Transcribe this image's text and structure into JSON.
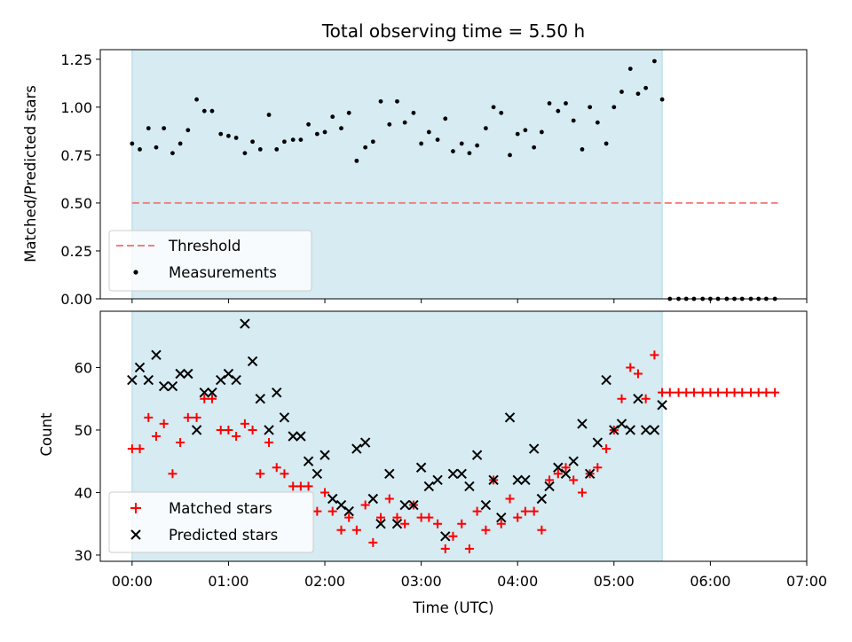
{
  "chart_data": [
    {
      "type": "scatter",
      "title": "Total observing time = 5.50 h",
      "ylabel": "Matched/Predicted stars",
      "xlabel": "",
      "xlim_hours": [
        -0.33,
        7.0
      ],
      "ylim": [
        0,
        1.3
      ],
      "yticks": [
        "0.00",
        "0.25",
        "0.50",
        "0.75",
        "1.00",
        "1.25"
      ],
      "yticks_values": [
        0,
        0.25,
        0.5,
        0.75,
        1.0,
        1.25
      ],
      "shaded_span_hours": [
        0,
        5.5
      ],
      "shade_color": "#add8e6",
      "legend_position": "lower-left",
      "series": [
        {
          "name": "Threshold",
          "style": "dashed-line",
          "color": "#f08080",
          "points": [
            [
              0,
              0.5
            ],
            [
              6.7,
              0.5
            ]
          ]
        },
        {
          "name": "Measurements",
          "style": "dot",
          "color": "#000000",
          "points": [
            [
              0.0,
              0.81
            ],
            [
              0.08,
              0.78
            ],
            [
              0.17,
              0.89
            ],
            [
              0.25,
              0.79
            ],
            [
              0.33,
              0.89
            ],
            [
              0.42,
              0.76
            ],
            [
              0.5,
              0.81
            ],
            [
              0.58,
              0.88
            ],
            [
              0.67,
              1.04
            ],
            [
              0.75,
              0.98
            ],
            [
              0.83,
              0.98
            ],
            [
              0.92,
              0.86
            ],
            [
              1.0,
              0.85
            ],
            [
              1.08,
              0.84
            ],
            [
              1.17,
              0.76
            ],
            [
              1.25,
              0.82
            ],
            [
              1.33,
              0.78
            ],
            [
              1.42,
              0.96
            ],
            [
              1.5,
              0.78
            ],
            [
              1.58,
              0.82
            ],
            [
              1.67,
              0.83
            ],
            [
              1.75,
              0.83
            ],
            [
              1.83,
              0.91
            ],
            [
              1.92,
              0.86
            ],
            [
              2.0,
              0.87
            ],
            [
              2.08,
              0.95
            ],
            [
              2.17,
              0.89
            ],
            [
              2.25,
              0.97
            ],
            [
              2.33,
              0.72
            ],
            [
              2.42,
              0.79
            ],
            [
              2.5,
              0.82
            ],
            [
              2.58,
              1.03
            ],
            [
              2.67,
              0.91
            ],
            [
              2.75,
              1.03
            ],
            [
              2.83,
              0.92
            ],
            [
              2.92,
              0.97
            ],
            [
              3.0,
              0.81
            ],
            [
              3.08,
              0.87
            ],
            [
              3.17,
              0.83
            ],
            [
              3.25,
              0.94
            ],
            [
              3.33,
              0.77
            ],
            [
              3.42,
              0.81
            ],
            [
              3.5,
              0.76
            ],
            [
              3.58,
              0.8
            ],
            [
              3.67,
              0.89
            ],
            [
              3.75,
              1.0
            ],
            [
              3.83,
              0.97
            ],
            [
              3.92,
              0.75
            ],
            [
              4.0,
              0.86
            ],
            [
              4.08,
              0.88
            ],
            [
              4.17,
              0.79
            ],
            [
              4.25,
              0.87
            ],
            [
              4.33,
              1.02
            ],
            [
              4.42,
              0.98
            ],
            [
              4.5,
              1.02
            ],
            [
              4.58,
              0.93
            ],
            [
              4.67,
              0.78
            ],
            [
              4.75,
              1.0
            ],
            [
              4.83,
              0.92
            ],
            [
              4.92,
              0.81
            ],
            [
              5.0,
              1.0
            ],
            [
              5.08,
              1.08
            ],
            [
              5.17,
              1.2
            ],
            [
              5.25,
              1.07
            ],
            [
              5.33,
              1.1
            ],
            [
              5.42,
              1.24
            ],
            [
              5.5,
              1.04
            ],
            [
              5.58,
              0
            ],
            [
              5.67,
              0
            ],
            [
              5.75,
              0
            ],
            [
              5.83,
              0
            ],
            [
              5.92,
              0
            ],
            [
              6.0,
              0
            ],
            [
              6.08,
              0
            ],
            [
              6.17,
              0
            ],
            [
              6.25,
              0
            ],
            [
              6.33,
              0
            ],
            [
              6.42,
              0
            ],
            [
              6.5,
              0
            ],
            [
              6.58,
              0
            ],
            [
              6.67,
              0
            ]
          ]
        }
      ]
    },
    {
      "type": "scatter",
      "title": "",
      "ylabel": "Count",
      "xlabel": "Time (UTC)",
      "xlim_hours": [
        -0.33,
        7.0
      ],
      "ylim": [
        29,
        69
      ],
      "yticks": [
        "30",
        "40",
        "50",
        "60"
      ],
      "yticks_values": [
        30,
        40,
        50,
        60
      ],
      "xticks": [
        "00:00",
        "01:00",
        "02:00",
        "03:00",
        "04:00",
        "05:00",
        "06:00",
        "07:00"
      ],
      "xticks_hours": [
        0,
        1,
        2,
        3,
        4,
        5,
        6,
        7
      ],
      "shaded_span_hours": [
        0,
        5.5
      ],
      "shade_color": "#add8e6",
      "legend_position": "lower-left",
      "series": [
        {
          "name": "Matched stars",
          "style": "plus",
          "color": "#ff0000",
          "points": [
            [
              0.0,
              47
            ],
            [
              0.08,
              47
            ],
            [
              0.17,
              52
            ],
            [
              0.25,
              49
            ],
            [
              0.33,
              51
            ],
            [
              0.42,
              43
            ],
            [
              0.5,
              48
            ],
            [
              0.58,
              52
            ],
            [
              0.67,
              52
            ],
            [
              0.75,
              55
            ],
            [
              0.83,
              55
            ],
            [
              0.92,
              50
            ],
            [
              1.0,
              50
            ],
            [
              1.08,
              49
            ],
            [
              1.17,
              51
            ],
            [
              1.25,
              50
            ],
            [
              1.33,
              43
            ],
            [
              1.42,
              48
            ],
            [
              1.5,
              44
            ],
            [
              1.58,
              43
            ],
            [
              1.67,
              41
            ],
            [
              1.75,
              41
            ],
            [
              1.83,
              41
            ],
            [
              1.92,
              37
            ],
            [
              2.0,
              40
            ],
            [
              2.08,
              37
            ],
            [
              2.17,
              34
            ],
            [
              2.25,
              36
            ],
            [
              2.33,
              34
            ],
            [
              2.42,
              38
            ],
            [
              2.5,
              32
            ],
            [
              2.58,
              36
            ],
            [
              2.67,
              39
            ],
            [
              2.75,
              36
            ],
            [
              2.83,
              35
            ],
            [
              2.92,
              38
            ],
            [
              3.0,
              36
            ],
            [
              3.08,
              36
            ],
            [
              3.17,
              35
            ],
            [
              3.25,
              31
            ],
            [
              3.33,
              33
            ],
            [
              3.42,
              35
            ],
            [
              3.5,
              31
            ],
            [
              3.58,
              37
            ],
            [
              3.67,
              34
            ],
            [
              3.75,
              42
            ],
            [
              3.83,
              35
            ],
            [
              3.92,
              39
            ],
            [
              4.0,
              36
            ],
            [
              4.08,
              37
            ],
            [
              4.17,
              37
            ],
            [
              4.25,
              34
            ],
            [
              4.33,
              42
            ],
            [
              4.42,
              43
            ],
            [
              4.5,
              44
            ],
            [
              4.58,
              42
            ],
            [
              4.67,
              40
            ],
            [
              4.75,
              43
            ],
            [
              4.83,
              44
            ],
            [
              4.92,
              47
            ],
            [
              5.0,
              50
            ],
            [
              5.08,
              55
            ],
            [
              5.17,
              60
            ],
            [
              5.25,
              59
            ],
            [
              5.33,
              55
            ],
            [
              5.42,
              62
            ],
            [
              5.5,
              56
            ],
            [
              5.58,
              56
            ],
            [
              5.67,
              56
            ],
            [
              5.75,
              56
            ],
            [
              5.83,
              56
            ],
            [
              5.92,
              56
            ],
            [
              6.0,
              56
            ],
            [
              6.08,
              56
            ],
            [
              6.17,
              56
            ],
            [
              6.25,
              56
            ],
            [
              6.33,
              56
            ],
            [
              6.42,
              56
            ],
            [
              6.5,
              56
            ],
            [
              6.58,
              56
            ],
            [
              6.67,
              56
            ]
          ]
        },
        {
          "name": "Predicted stars",
          "style": "x",
          "color": "#000000",
          "points": [
            [
              0.0,
              58
            ],
            [
              0.08,
              60
            ],
            [
              0.17,
              58
            ],
            [
              0.25,
              62
            ],
            [
              0.33,
              57
            ],
            [
              0.42,
              57
            ],
            [
              0.5,
              59
            ],
            [
              0.58,
              59
            ],
            [
              0.67,
              50
            ],
            [
              0.75,
              56
            ],
            [
              0.83,
              56
            ],
            [
              0.92,
              58
            ],
            [
              1.0,
              59
            ],
            [
              1.08,
              58
            ],
            [
              1.17,
              67
            ],
            [
              1.25,
              61
            ],
            [
              1.33,
              55
            ],
            [
              1.42,
              50
            ],
            [
              1.5,
              56
            ],
            [
              1.58,
              52
            ],
            [
              1.67,
              49
            ],
            [
              1.75,
              49
            ],
            [
              1.83,
              45
            ],
            [
              1.92,
              43
            ],
            [
              2.0,
              46
            ],
            [
              2.08,
              39
            ],
            [
              2.17,
              38
            ],
            [
              2.25,
              37
            ],
            [
              2.33,
              47
            ],
            [
              2.42,
              48
            ],
            [
              2.5,
              39
            ],
            [
              2.58,
              35
            ],
            [
              2.67,
              43
            ],
            [
              2.75,
              35
            ],
            [
              2.83,
              38
            ],
            [
              2.92,
              38
            ],
            [
              3.0,
              44
            ],
            [
              3.08,
              41
            ],
            [
              3.17,
              42
            ],
            [
              3.25,
              33
            ],
            [
              3.33,
              43
            ],
            [
              3.42,
              43
            ],
            [
              3.5,
              41
            ],
            [
              3.58,
              46
            ],
            [
              3.67,
              38
            ],
            [
              3.75,
              42
            ],
            [
              3.83,
              36
            ],
            [
              3.92,
              52
            ],
            [
              4.0,
              42
            ],
            [
              4.08,
              42
            ],
            [
              4.17,
              47
            ],
            [
              4.25,
              39
            ],
            [
              4.33,
              41
            ],
            [
              4.42,
              44
            ],
            [
              4.5,
              43
            ],
            [
              4.58,
              45
            ],
            [
              4.67,
              51
            ],
            [
              4.75,
              43
            ],
            [
              4.83,
              48
            ],
            [
              4.92,
              58
            ],
            [
              5.0,
              50
            ],
            [
              5.08,
              51
            ],
            [
              5.17,
              50
            ],
            [
              5.25,
              55
            ],
            [
              5.33,
              50
            ],
            [
              5.42,
              50
            ],
            [
              5.5,
              54
            ]
          ]
        }
      ]
    }
  ]
}
